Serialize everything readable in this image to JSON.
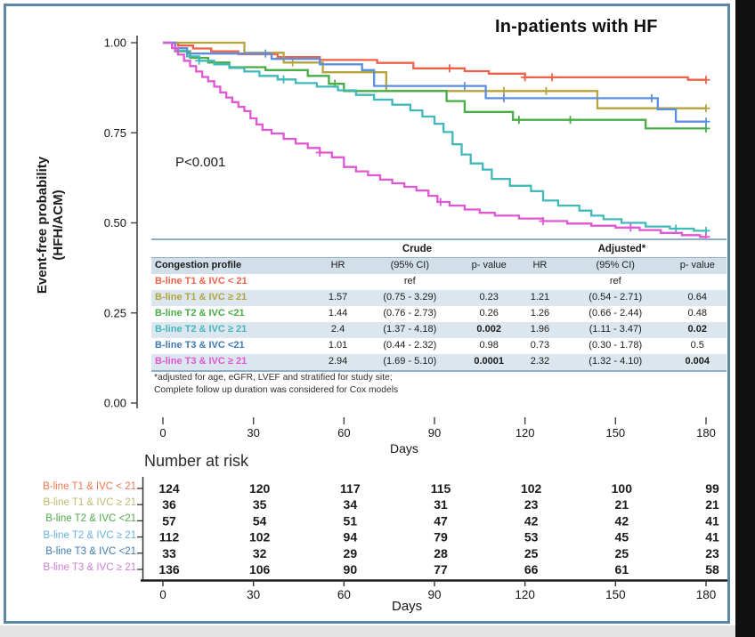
{
  "page": {
    "title": "In-patients with HF",
    "pvalue": "P<0.001",
    "ylabel_line1": "Event-free probability",
    "ylabel_line2": "(HFH/ACM)",
    "xlabel_main": "Days",
    "risk_header": "Number at risk",
    "xlabel_risk": "Days"
  },
  "chart_data": {
    "type": "line",
    "subtype": "kaplan-meier-step",
    "title": "In-patients with HF",
    "xlabel": "Days",
    "ylabel": "Event-free probability (HFH/ACM)",
    "annotation": "P<0.001",
    "xlim": [
      0,
      180
    ],
    "xticks": [
      0,
      30,
      60,
      90,
      120,
      150,
      180
    ],
    "ylim": [
      0,
      1
    ],
    "yticks": [
      {
        "v": 1.0,
        "label": "1.00"
      },
      {
        "v": 0.75,
        "label": "0.75"
      },
      {
        "v": 0.5,
        "label": "0.50"
      },
      {
        "v": 0.25,
        "label": "0.25"
      },
      {
        "v": 0.0,
        "label": "0.00"
      }
    ],
    "grid": false,
    "legend_position": "none",
    "series": [
      {
        "name": "B-line T1 & IVC < 21",
        "color": "#ee6149",
        "steps": [
          [
            0,
            1
          ],
          [
            5,
            0.992
          ],
          [
            10,
            0.984
          ],
          [
            16,
            0.976
          ],
          [
            25,
            0.968
          ],
          [
            38,
            0.96
          ],
          [
            52,
            0.952
          ],
          [
            71,
            0.944
          ],
          [
            83,
            0.929
          ],
          [
            100,
            0.921
          ],
          [
            108,
            0.914
          ],
          [
            120,
            0.904
          ],
          [
            174,
            0.897
          ],
          [
            180,
            0.897
          ]
        ],
        "censors": [
          95,
          120,
          129,
          180
        ]
      },
      {
        "name": "B-line T1 & IVC ≥ 21",
        "color": "#b5a43e",
        "steps": [
          [
            0,
            1
          ],
          [
            27,
            0.972
          ],
          [
            40,
            0.945
          ],
          [
            53,
            0.918
          ],
          [
            74,
            0.866
          ],
          [
            144,
            0.818
          ],
          [
            180,
            0.818
          ]
        ],
        "censors": [
          43,
          113,
          127,
          180
        ]
      },
      {
        "name": "B-line T2 & IVC <21",
        "color": "#47ad45",
        "steps": [
          [
            0,
            1
          ],
          [
            4,
            0.976
          ],
          [
            9,
            0.958
          ],
          [
            15,
            0.945
          ],
          [
            22,
            0.932
          ],
          [
            34,
            0.924
          ],
          [
            48,
            0.908
          ],
          [
            55,
            0.886
          ],
          [
            60,
            0.866
          ],
          [
            94,
            0.838
          ],
          [
            100,
            0.808
          ],
          [
            116,
            0.786
          ],
          [
            160,
            0.762
          ],
          [
            180,
            0.762
          ]
        ],
        "censors": [
          57,
          118,
          135,
          180
        ]
      },
      {
        "name": "B-line T2 & IVC ≥ 21",
        "color": "#41b9bb",
        "steps": [
          [
            0,
            1
          ],
          [
            4,
            0.978
          ],
          [
            8,
            0.962
          ],
          [
            12,
            0.95
          ],
          [
            17,
            0.94
          ],
          [
            22,
            0.93
          ],
          [
            27,
            0.92
          ],
          [
            32,
            0.908
          ],
          [
            38,
            0.898
          ],
          [
            44,
            0.888
          ],
          [
            51,
            0.878
          ],
          [
            58,
            0.868
          ],
          [
            64,
            0.855
          ],
          [
            70,
            0.842
          ],
          [
            76,
            0.828
          ],
          [
            82,
            0.812
          ],
          [
            86,
            0.795
          ],
          [
            90,
            0.775
          ],
          [
            93,
            0.752
          ],
          [
            96,
            0.718
          ],
          [
            99,
            0.69
          ],
          [
            102,
            0.665
          ],
          [
            106,
            0.648
          ],
          [
            109,
            0.622
          ],
          [
            115,
            0.603
          ],
          [
            122,
            0.588
          ],
          [
            126,
            0.562
          ],
          [
            131,
            0.548
          ],
          [
            138,
            0.534
          ],
          [
            142,
            0.52
          ],
          [
            146,
            0.51
          ],
          [
            152,
            0.5
          ],
          [
            160,
            0.49
          ],
          [
            168,
            0.484
          ],
          [
            176,
            0.478
          ],
          [
            180,
            0.478
          ]
        ],
        "censors": [
          12,
          40,
          170,
          180
        ]
      },
      {
        "name": "B-line  T3 & IVC <21",
        "color": "#5b8fe0",
        "steps": [
          [
            0,
            1
          ],
          [
            4,
            0.985
          ],
          [
            8,
            0.97
          ],
          [
            36,
            0.955
          ],
          [
            52,
            0.94
          ],
          [
            66,
            0.924
          ],
          [
            70,
            0.88
          ],
          [
            107,
            0.846
          ],
          [
            164,
            0.815
          ],
          [
            170,
            0.781
          ],
          [
            180,
            0.781
          ]
        ],
        "censors": [
          34,
          100,
          113,
          162,
          180
        ]
      },
      {
        "name": "B-line T3 & IVC ≥ 21",
        "color": "#e156d3",
        "steps": [
          [
            0,
            1
          ],
          [
            3,
            0.985
          ],
          [
            5,
            0.967
          ],
          [
            7,
            0.95
          ],
          [
            9,
            0.935
          ],
          [
            11,
            0.92
          ],
          [
            13,
            0.905
          ],
          [
            15,
            0.893
          ],
          [
            17,
            0.878
          ],
          [
            19,
            0.862
          ],
          [
            21,
            0.848
          ],
          [
            23,
            0.835
          ],
          [
            25,
            0.822
          ],
          [
            27,
            0.81
          ],
          [
            29,
            0.79
          ],
          [
            31,
            0.773
          ],
          [
            33,
            0.758
          ],
          [
            36,
            0.748
          ],
          [
            40,
            0.733
          ],
          [
            44,
            0.72
          ],
          [
            48,
            0.708
          ],
          [
            52,
            0.695
          ],
          [
            56,
            0.682
          ],
          [
            60,
            0.655
          ],
          [
            64,
            0.643
          ],
          [
            68,
            0.632
          ],
          [
            72,
            0.62
          ],
          [
            76,
            0.61
          ],
          [
            80,
            0.6
          ],
          [
            84,
            0.59
          ],
          [
            88,
            0.575
          ],
          [
            91,
            0.558
          ],
          [
            95,
            0.548
          ],
          [
            100,
            0.537
          ],
          [
            105,
            0.528
          ],
          [
            110,
            0.52
          ],
          [
            118,
            0.512
          ],
          [
            126,
            0.505
          ],
          [
            134,
            0.498
          ],
          [
            142,
            0.492
          ],
          [
            150,
            0.487
          ],
          [
            158,
            0.48
          ],
          [
            165,
            0.472
          ],
          [
            172,
            0.466
          ],
          [
            178,
            0.461
          ],
          [
            180,
            0.461
          ]
        ],
        "censors": [
          4,
          52,
          92,
          126,
          155,
          180
        ]
      }
    ],
    "risk_table": {
      "header": "Number at risk",
      "xlabel": "Days",
      "xticks": [
        0,
        30,
        60,
        90,
        120,
        150,
        180
      ],
      "rows": [
        {
          "label": "B-line T1 & IVC <  21",
          "color": "#ee7550",
          "values": [
            124,
            120,
            117,
            115,
            102,
            100,
            99
          ]
        },
        {
          "label": "B-line T1 & IVC ≥ 21",
          "color": "#c0bb6f",
          "values": [
            36,
            35,
            34,
            31,
            23,
            21,
            21
          ]
        },
        {
          "label": "B-line T2 & IVC <21",
          "color": "#4fa94b",
          "values": [
            57,
            54,
            51,
            47,
            42,
            42,
            41
          ]
        },
        {
          "label": "B-line T2 & IVC ≥ 21",
          "color": "#66b2e0",
          "values": [
            112,
            102,
            94,
            79,
            53,
            45,
            41
          ]
        },
        {
          "label": "B-line  T3 & IVC <21",
          "color": "#3d7ab2",
          "values": [
            33,
            32,
            29,
            28,
            25,
            25,
            23
          ]
        },
        {
          "label": "B-line T3 & IVC ≥ 21",
          "color": "#cf7ed6",
          "values": [
            136,
            106,
            90,
            77,
            66,
            61,
            58
          ]
        }
      ]
    }
  },
  "cox_table": {
    "group_headers": [
      "Crude",
      "Adjusted*"
    ],
    "columns": [
      "Congestion profile",
      "HR",
      "(95% CI)",
      "p- value",
      "HR",
      "(95% CI)",
      "p- value"
    ],
    "rows": [
      {
        "label": "B-line T1 & IVC < 21",
        "color": "#ee6149",
        "ref": true,
        "cells": [
          "",
          "ref",
          "",
          "",
          "ref",
          ""
        ],
        "bold_cells": []
      },
      {
        "label": "B-line T1 & IVC ≥ 21",
        "color": "#b5a43e",
        "ref": false,
        "cells": [
          "1.57",
          "(0.75 - 3.29)",
          "0.23",
          "1.21",
          "(0.54 - 2.71)",
          "0.64"
        ],
        "bold_cells": []
      },
      {
        "label": "B-line T2 & IVC <21",
        "color": "#47ad45",
        "ref": false,
        "cells": [
          "1.44",
          "(0.76 - 2.73)",
          "0.26",
          "1.26",
          "(0.66 - 2.44)",
          "0.48"
        ],
        "bold_cells": []
      },
      {
        "label": "B-line T2 & IVC ≥ 21",
        "color": "#41b9bb",
        "ref": false,
        "cells": [
          "2.4",
          "(1.37 - 4.18)",
          "0.002",
          "1.96",
          "(1.11 - 3.47)",
          "0.02"
        ],
        "bold_cells": [
          2,
          5
        ]
      },
      {
        "label": "B-line  T3 & IVC <21",
        "color": "#3d7ab2",
        "ref": false,
        "cells": [
          "1.01",
          "(0.44 - 2.32)",
          "0.98",
          "0.73",
          "(0.30 - 1.78)",
          "0.5"
        ],
        "bold_cells": []
      },
      {
        "label": "B-line T3 & IVC ≥ 21",
        "color": "#e156d3",
        "ref": false,
        "cells": [
          "2.94",
          "(1.69 - 5.10)",
          "0.0001",
          "2.32",
          "(1.32 - 4.10)",
          "0.004"
        ],
        "bold_cells": [
          2,
          5
        ]
      }
    ],
    "footnotes": [
      "*adjusted for age, eGFR, LVEF and stratified for study site;",
      "Complete follow up duration  was considered  for Cox models"
    ]
  }
}
